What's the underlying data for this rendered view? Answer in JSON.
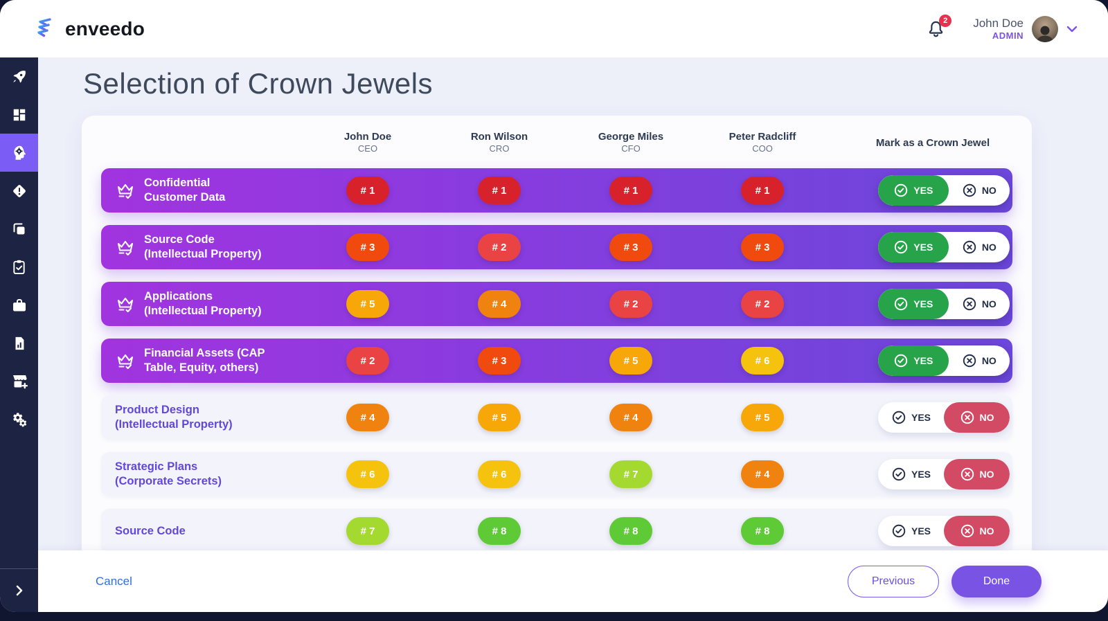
{
  "topbar": {
    "brand": "enveedo",
    "notifications_count": "2",
    "user": {
      "name": "John Doe",
      "role": "ADMIN"
    }
  },
  "sidebar": {
    "items": [
      {
        "name": "sidebar-item-launch",
        "icon": "rocket-icon",
        "active": false
      },
      {
        "name": "sidebar-item-dashboard",
        "icon": "dashboard-icon",
        "active": false
      },
      {
        "name": "sidebar-item-strategy",
        "icon": "head-gear-icon",
        "active": true
      },
      {
        "name": "sidebar-item-risks",
        "icon": "diamond-alert-icon",
        "active": false
      },
      {
        "name": "sidebar-item-collections",
        "icon": "copy-icon",
        "active": false
      },
      {
        "name": "sidebar-item-tasks",
        "icon": "clipboard-check-icon",
        "active": false
      },
      {
        "name": "sidebar-item-portfolio",
        "icon": "briefcase-icon",
        "active": false
      },
      {
        "name": "sidebar-item-reports",
        "icon": "document-chart-icon",
        "active": false
      },
      {
        "name": "sidebar-item-marketplace",
        "icon": "store-plus-icon",
        "active": false
      },
      {
        "name": "sidebar-item-settings",
        "icon": "gears-icon",
        "active": false
      }
    ]
  },
  "page": {
    "title": "Selection of Crown Jewels"
  },
  "table": {
    "columns": [
      {
        "name": "John Doe",
        "role": "CEO"
      },
      {
        "name": "Ron Wilson",
        "role": "CRO"
      },
      {
        "name": "George Miles",
        "role": "CFO"
      },
      {
        "name": "Peter Radcliff",
        "role": "COO"
      }
    ],
    "mark_label": "Mark as a Crown Jewel",
    "rank_prefix": "# ",
    "toggle": {
      "yes_label": "YES",
      "no_label": "NO"
    },
    "rows": [
      {
        "title_lines": [
          "Confidential",
          "Customer Data"
        ],
        "crown": true,
        "ranks": [
          1,
          1,
          1,
          1
        ],
        "crown_jewel": "yes"
      },
      {
        "title_lines": [
          "Source Code",
          "(Intellectual Property)"
        ],
        "crown": true,
        "ranks": [
          3,
          2,
          3,
          3
        ],
        "crown_jewel": "yes"
      },
      {
        "title_lines": [
          "Applications",
          "(Intellectual Property)"
        ],
        "crown": true,
        "ranks": [
          5,
          4,
          2,
          2
        ],
        "crown_jewel": "yes"
      },
      {
        "title_lines": [
          "Financial Assets (CAP",
          "Table, Equity, others)"
        ],
        "crown": true,
        "ranks": [
          2,
          3,
          5,
          6
        ],
        "crown_jewel": "yes"
      },
      {
        "title_lines": [
          "Product Design",
          "(Intellectual Property)"
        ],
        "crown": false,
        "ranks": [
          4,
          5,
          4,
          5
        ],
        "crown_jewel": "no"
      },
      {
        "title_lines": [
          "Strategic Plans",
          "(Corporate Secrets)"
        ],
        "crown": false,
        "ranks": [
          6,
          6,
          7,
          4
        ],
        "crown_jewel": "no"
      },
      {
        "title_lines": [
          "Source Code"
        ],
        "crown": false,
        "ranks": [
          7,
          8,
          8,
          8
        ],
        "crown_jewel": "no"
      }
    ]
  },
  "footer": {
    "cancel": "Cancel",
    "previous": "Previous",
    "done": "Done"
  },
  "colors": {
    "rank": {
      "1": "#D7222B",
      "2": "#E94343",
      "3": "#F04A0F",
      "4": "#F0820F",
      "5": "#F7A808",
      "6": "#F5C30E",
      "7": "#A4D930",
      "8": "#5ECB36"
    },
    "toggle_yes": "#27A449",
    "toggle_no": "#D24A64",
    "accent_purple": "#7B52E8"
  }
}
